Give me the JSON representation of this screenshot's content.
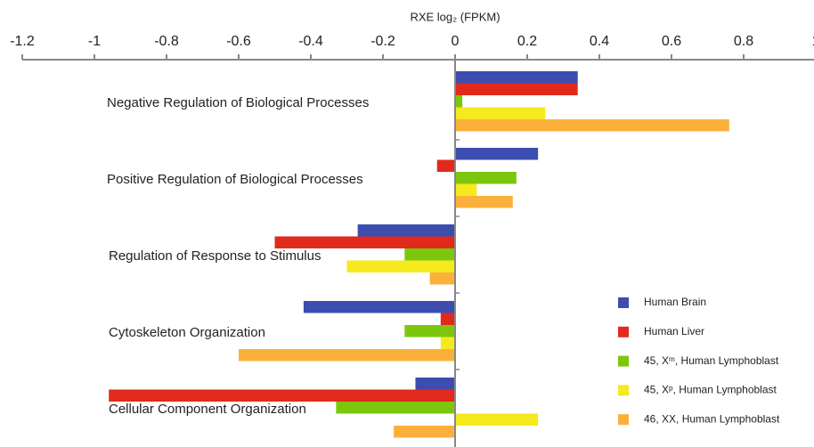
{
  "chart_data": {
    "type": "barh",
    "xlabel": "RXE log₂ (FPKM)",
    "categories": [
      "Negative Regulation of Biological Processes",
      "Positive Regulation of Biological Processes",
      "Regulation of Response to Stimulus",
      "Cytoskeleton Organization",
      "Cellular Component Organization"
    ],
    "series": [
      {
        "name": "Human Brain",
        "color": "#3c4daf",
        "values": [
          0.34,
          0.23,
          -0.27,
          -0.42,
          -0.11
        ]
      },
      {
        "name": "Human Liver",
        "color": "#e12a1c",
        "values": [
          0.34,
          -0.05,
          -0.5,
          -0.04,
          -0.96
        ]
      },
      {
        "name": "45, Xᵐ, Human Lymphoblast",
        "color": "#7cc70d",
        "values": [
          0.02,
          0.17,
          -0.14,
          -0.14,
          -0.33
        ]
      },
      {
        "name": "45, Xᵖ, Human Lymphoblast",
        "color": "#f6e91d",
        "values": [
          0.25,
          0.06,
          -0.3,
          -0.04,
          0.23
        ]
      },
      {
        "name": "46, XX, Human Lymphoblast",
        "color": "#fbb03c",
        "values": [
          0.76,
          0.16,
          -0.07,
          -0.6,
          -0.17
        ]
      }
    ],
    "xlim": [
      -1.2,
      1
    ],
    "xticks": [
      -1.2,
      -1,
      -0.8,
      -0.6,
      -0.4,
      -0.2,
      0,
      0.2,
      0.4,
      0.6,
      0.8,
      1
    ],
    "legend": "lower right"
  }
}
